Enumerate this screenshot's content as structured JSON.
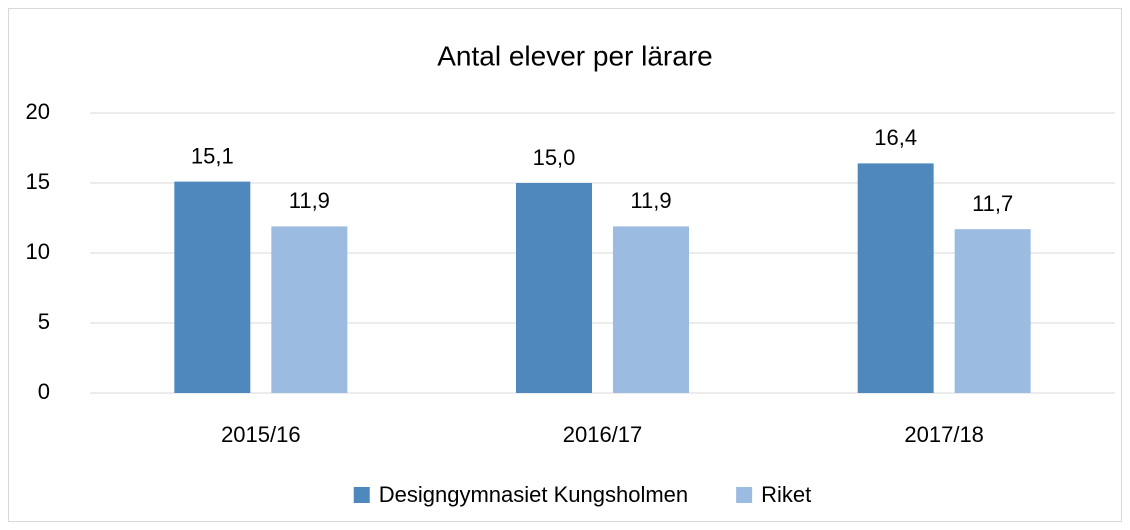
{
  "chart_data": {
    "type": "bar",
    "title": "Antal elever per lärare",
    "categories": [
      "2015/16",
      "2016/17",
      "2017/18"
    ],
    "series": [
      {
        "name": "Designgymnasiet Kungsholmen",
        "color": "#4f88bd",
        "values": [
          15.1,
          15.0,
          16.4
        ],
        "value_labels": [
          "15,1",
          "15,0",
          "16,4"
        ]
      },
      {
        "name": "Riket",
        "color": "#9bbbe0",
        "values": [
          11.9,
          11.9,
          11.7
        ],
        "value_labels": [
          "11,9",
          "11,9",
          "11,7"
        ]
      }
    ],
    "ylim": [
      0,
      20
    ],
    "yticks": [
      0,
      5,
      10,
      15,
      20
    ],
    "grid": true,
    "legend": "bottom"
  }
}
